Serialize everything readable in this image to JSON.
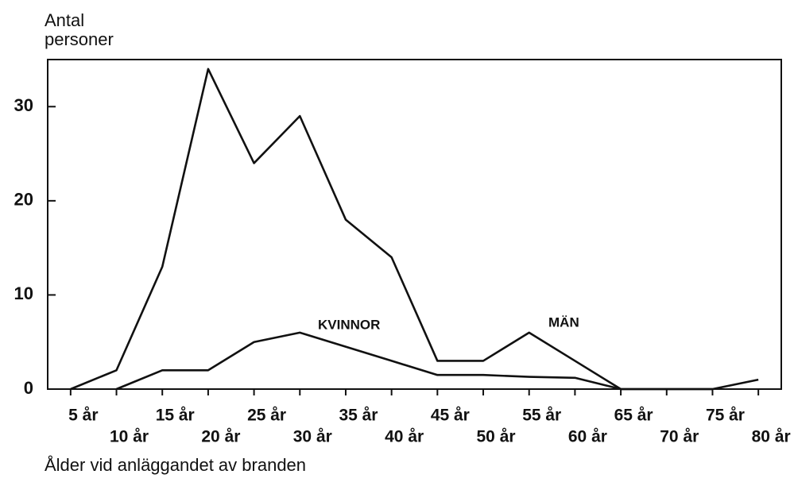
{
  "chart_data": {
    "type": "line",
    "ylabel": "Antal personer",
    "xlabel": "Ålder vid anläggandet av branden",
    "x": [
      5,
      10,
      15,
      20,
      25,
      30,
      35,
      40,
      45,
      50,
      55,
      60,
      65,
      70,
      75,
      80
    ],
    "x_labels": [
      "5 år",
      "10 år",
      "15 år",
      "20 år",
      "25 år",
      "30 år",
      "35 år",
      "40 år",
      "45 år",
      "50 år",
      "55 år",
      "60 år",
      "65 år",
      "70 år",
      "75 år",
      "80 år"
    ],
    "series": [
      {
        "name": "MÄN",
        "color": "#111111",
        "values": [
          0,
          2,
          13,
          34,
          24,
          29,
          18,
          14,
          3,
          3,
          6,
          3,
          0,
          0,
          0,
          1
        ]
      },
      {
        "name": "KVINNOR",
        "color": "#111111",
        "values": [
          null,
          0,
          2,
          2,
          5,
          6,
          4.5,
          3,
          1.5,
          1.5,
          1.3,
          1.2,
          0,
          0,
          0,
          null
        ]
      }
    ],
    "xlim": [
      2.5,
      82.5
    ],
    "ylim": [
      0,
      35
    ],
    "yticks": [
      0,
      10,
      20,
      30
    ]
  }
}
